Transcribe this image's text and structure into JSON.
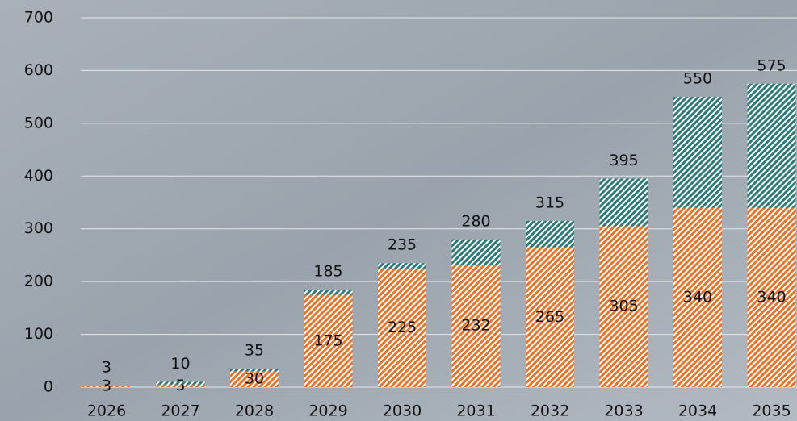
{
  "chart_data": {
    "type": "stacked-bar",
    "categories": [
      "2026",
      "2027",
      "2028",
      "2029",
      "2030",
      "2031",
      "2032",
      "2033",
      "2034",
      "2035"
    ],
    "series": [
      {
        "color": "#e8742a",
        "values": [
          3,
          5,
          30,
          175,
          225,
          232,
          265,
          305,
          340,
          340
        ]
      },
      {
        "color": "#2e7a7a",
        "values": [
          0,
          5,
          5,
          10,
          10,
          48,
          50,
          90,
          210,
          235
        ]
      }
    ],
    "totals": [
      3,
      10,
      35,
      185,
      235,
      280,
      315,
      395,
      550,
      575
    ],
    "ylim": [
      0,
      700
    ],
    "yticks": [
      0,
      100,
      200,
      300,
      400,
      500,
      600,
      700
    ],
    "grid": true
  }
}
